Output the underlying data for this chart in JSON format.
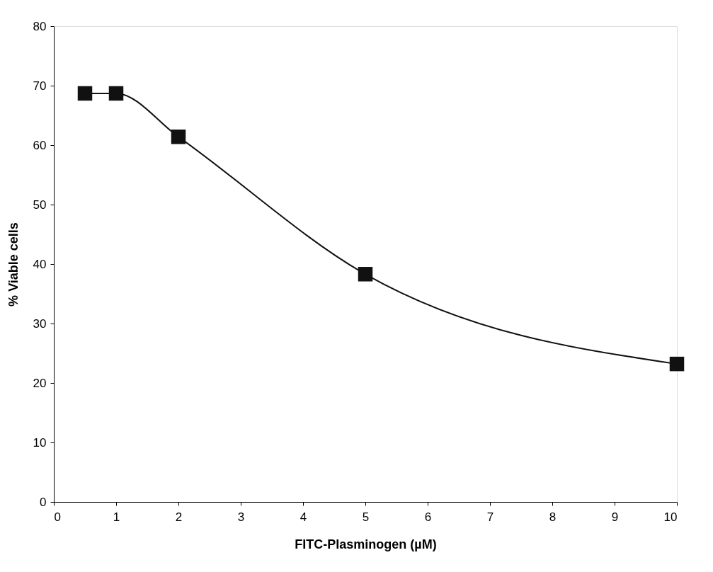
{
  "chart_data": {
    "type": "line",
    "xlabel": "FITC-Plasminogen (µM)",
    "ylabel": "% Viable cells",
    "x": [
      0.5,
      1,
      2,
      5,
      10
    ],
    "series": [
      {
        "color": "#111111",
        "values": [
          68.7,
          68.7,
          61.4,
          38.3,
          23.2
        ]
      }
    ],
    "xlim": [
      0,
      10
    ],
    "xticks": [
      0,
      1,
      2,
      3,
      4,
      5,
      6,
      7,
      8,
      9,
      10
    ],
    "ylim": [
      0,
      80
    ],
    "yticks": [
      0,
      10,
      20,
      30,
      40,
      50,
      60,
      70,
      80
    ],
    "marker": "square",
    "line_style": "solid",
    "grid": false,
    "legend": false
  }
}
